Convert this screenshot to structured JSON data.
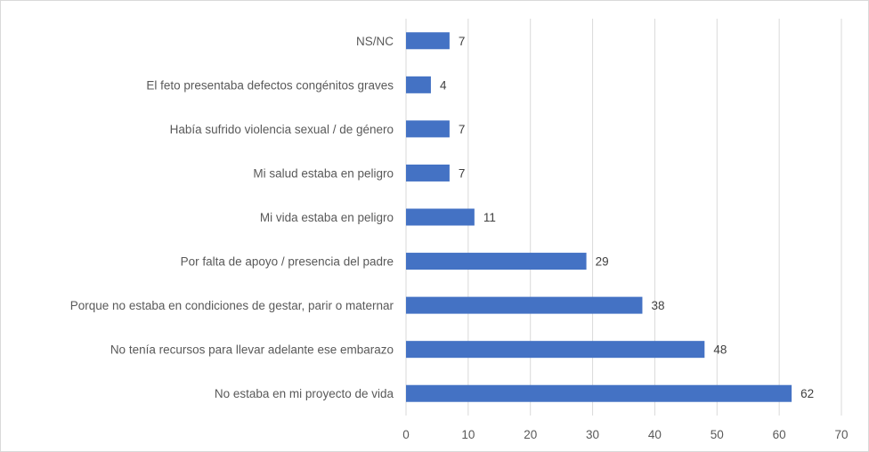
{
  "chart_data": {
    "type": "bar",
    "orientation": "horizontal",
    "title": "",
    "xlabel": "",
    "ylabel": "",
    "xlim": [
      0,
      70
    ],
    "xticks": [
      0,
      10,
      20,
      30,
      40,
      50,
      60,
      70
    ],
    "grid": true,
    "bar_color": "#4472C4",
    "categories": [
      "NS/NC",
      "El feto presentaba defectos congénitos graves",
      "Había sufrido violencia sexual / de género",
      "Mi salud estaba en peligro",
      "Mi vida estaba en peligro",
      "Por falta de apoyo / presencia del padre",
      "Porque no estaba en condiciones de gestar, parir o maternar",
      "No tenía recursos para llevar adelante ese embarazo",
      "No estaba en mi proyecto de vida"
    ],
    "values": [
      7,
      4,
      7,
      7,
      11,
      29,
      38,
      48,
      62
    ]
  }
}
